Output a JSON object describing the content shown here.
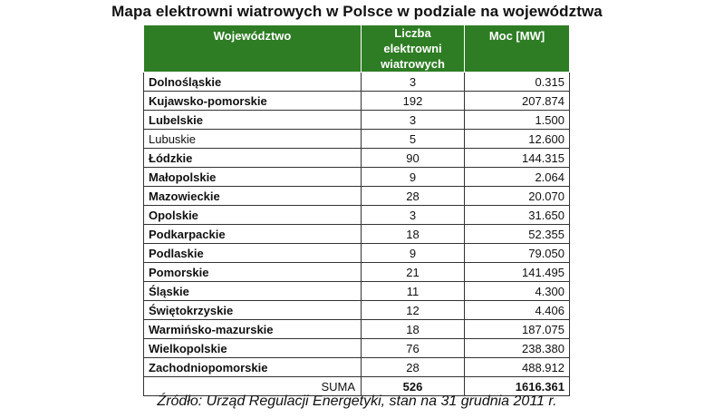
{
  "title": "Mapa elektrowni wiatrowych w Polsce w podziale na województwa",
  "headers": {
    "voivodeship": "Województwo",
    "count": "Liczba elektrowni wiatrowych",
    "power": "Moc [MW]"
  },
  "rows": [
    {
      "name": "Dolnośląskie",
      "count": "3",
      "power": "0.315"
    },
    {
      "name": "Kujawsko-pomorskie",
      "count": "192",
      "power": "207.874"
    },
    {
      "name": "Lubelskie",
      "count": "3",
      "power": "1.500"
    },
    {
      "name": "Lubuskie",
      "count": "5",
      "power": "12.600"
    },
    {
      "name": "Łódzkie",
      "count": "90",
      "power": "144.315"
    },
    {
      "name": "Małopolskie",
      "count": "9",
      "power": "2.064"
    },
    {
      "name": "Mazowieckie",
      "count": "28",
      "power": "20.070"
    },
    {
      "name": "Opolskie",
      "count": "3",
      "power": "31.650"
    },
    {
      "name": "Podkarpackie",
      "count": "18",
      "power": "52.355"
    },
    {
      "name": "Podlaskie",
      "count": "9",
      "power": "79.050"
    },
    {
      "name": "Pomorskie",
      "count": "21",
      "power": "141.495"
    },
    {
      "name": "Śląskie",
      "count": "11",
      "power": "4.300"
    },
    {
      "name": "Świętokrzyskie",
      "count": "12",
      "power": "4.406"
    },
    {
      "name": "Warmińsko-mazurskie",
      "count": "18",
      "power": "187.075"
    },
    {
      "name": "Wielkopolskie",
      "count": "76",
      "power": "238.380"
    },
    {
      "name": "Zachodniopomorskie",
      "count": "28",
      "power": "488.912"
    }
  ],
  "total": {
    "label": "SUMA",
    "count": "526",
    "power": "1616.361"
  },
  "source": "Źródło: Urząd Regulacji Energetyki, stan na 31 grudnia 2011 r.",
  "colors": {
    "header_bg": "#2e7d24",
    "header_text": "#ffffff"
  }
}
